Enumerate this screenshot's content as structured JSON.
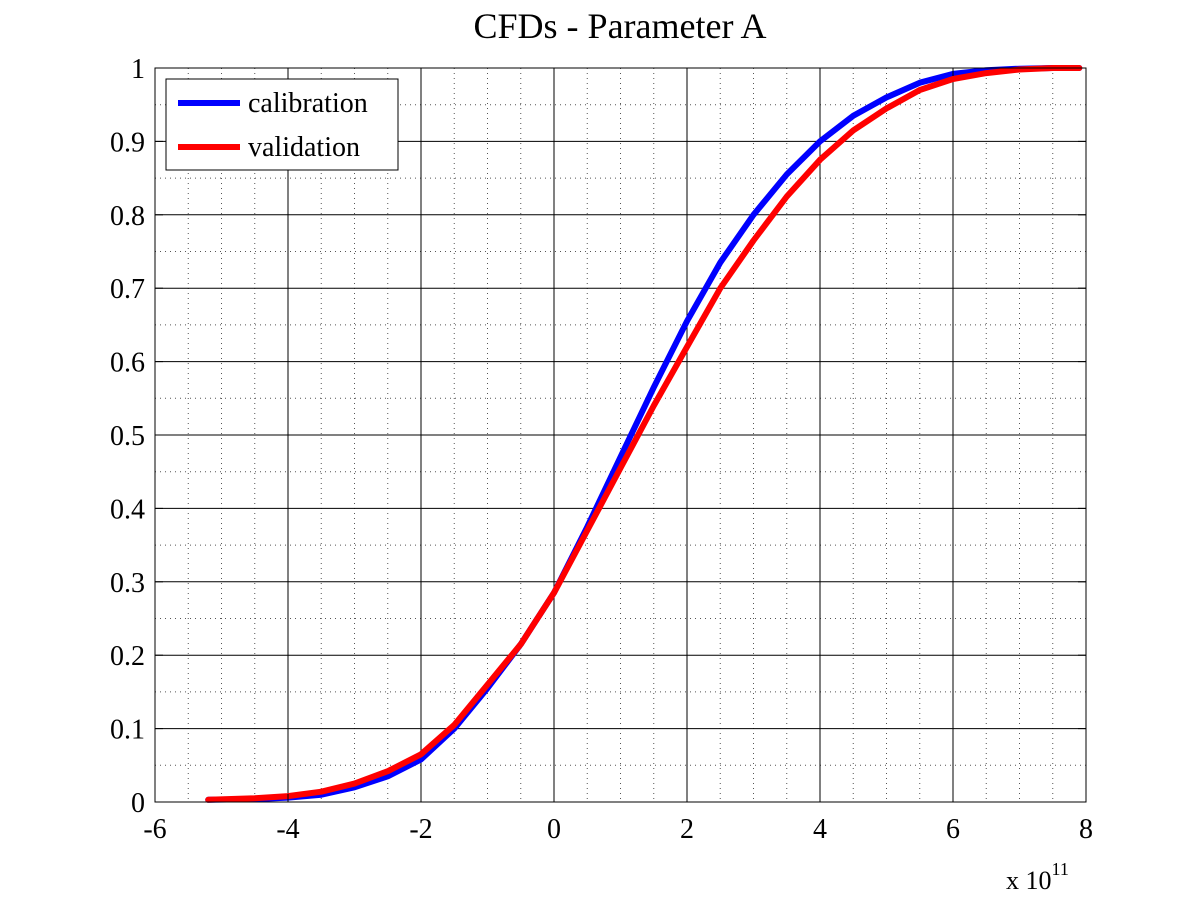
{
  "chart_data": {
    "type": "line",
    "title": "CFDs - Parameter A",
    "xlabel": "",
    "ylabel": "",
    "x_exponent_label": "x 10",
    "x_exponent_power": "11",
    "xlim": [
      -6,
      8
    ],
    "ylim": [
      0,
      1
    ],
    "xticks": [
      -6,
      -4,
      -2,
      0,
      2,
      4,
      6,
      8
    ],
    "xtick_labels": [
      "-6",
      "-4",
      "-2",
      "0",
      "2",
      "4",
      "6",
      "8"
    ],
    "yticks": [
      0,
      0.1,
      0.2,
      0.3,
      0.4,
      0.5,
      0.6,
      0.7,
      0.8,
      0.9,
      1
    ],
    "ytick_labels": [
      "0",
      "0.1",
      "0.2",
      "0.3",
      "0.4",
      "0.5",
      "0.6",
      "0.7",
      "0.8",
      "0.9",
      "1"
    ],
    "grid": true,
    "minor_grid": true,
    "legend_position": "top-left",
    "series": [
      {
        "name": "calibration",
        "color": "#0000ff",
        "x": [
          -5.2,
          -4.5,
          -4.0,
          -3.5,
          -3.0,
          -2.5,
          -2.0,
          -1.5,
          -1.0,
          -0.5,
          0.0,
          0.5,
          1.0,
          1.5,
          2.0,
          2.5,
          3.0,
          3.5,
          4.0,
          4.5,
          5.0,
          5.5,
          6.0,
          6.5,
          7.0,
          7.5,
          7.9
        ],
        "y": [
          0.003,
          0.004,
          0.006,
          0.01,
          0.02,
          0.035,
          0.058,
          0.1,
          0.155,
          0.215,
          0.285,
          0.375,
          0.47,
          0.565,
          0.655,
          0.735,
          0.8,
          0.855,
          0.9,
          0.935,
          0.96,
          0.98,
          0.992,
          0.997,
          0.999,
          1.0,
          1.0
        ]
      },
      {
        "name": "validation",
        "color": "#ff0000",
        "x": [
          -5.2,
          -4.5,
          -4.0,
          -3.5,
          -3.0,
          -2.5,
          -2.0,
          -1.5,
          -1.0,
          -0.5,
          0.0,
          0.5,
          1.0,
          1.5,
          2.0,
          2.5,
          3.0,
          3.5,
          4.0,
          4.5,
          5.0,
          5.5,
          6.0,
          6.5,
          7.0,
          7.5,
          7.9
        ],
        "y": [
          0.003,
          0.005,
          0.008,
          0.014,
          0.025,
          0.042,
          0.065,
          0.105,
          0.16,
          0.215,
          0.285,
          0.37,
          0.455,
          0.54,
          0.62,
          0.7,
          0.765,
          0.825,
          0.875,
          0.915,
          0.945,
          0.97,
          0.985,
          0.993,
          0.998,
          1.0,
          1.0
        ]
      }
    ]
  }
}
